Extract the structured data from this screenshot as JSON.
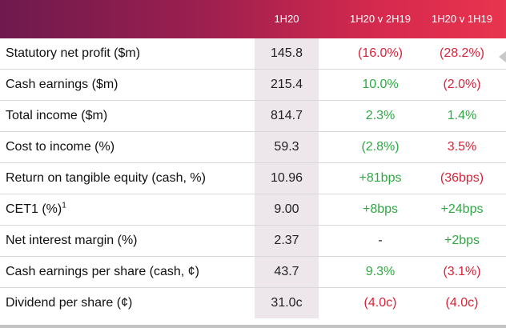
{
  "header": {
    "col1": "1H20",
    "col2": "1H20 v 2H19",
    "col3": "1H20 v 1H19"
  },
  "rows": [
    {
      "label": "Statutory net profit ($m)",
      "v1": "145.8",
      "v2": "(16.0%)",
      "v3": "(28.2%)",
      "s2": "neg",
      "s3": "neg"
    },
    {
      "label": "Cash earnings ($m)",
      "v1": "215.4",
      "v2": "10.0%",
      "v3": "(2.0%)",
      "s2": "pos",
      "s3": "neg"
    },
    {
      "label": "Total income ($m)",
      "v1": "814.7",
      "v2": "2.3%",
      "v3": "1.4%",
      "s2": "pos",
      "s3": "pos"
    },
    {
      "label": "Cost to income (%)",
      "v1": "59.3",
      "v2": "(2.8%)",
      "v3": "3.5%",
      "s2": "pos",
      "s3": "neg"
    },
    {
      "label": "Return on tangible equity (cash, %)",
      "v1": "10.96",
      "v2": "+81bps",
      "v3": "(36bps)",
      "s2": "pos",
      "s3": "neg"
    },
    {
      "label": "CET1 (%)",
      "label_sup": "1",
      "v1": "9.00",
      "v2": "+8bps",
      "v3": "+24bps",
      "s2": "pos",
      "s3": "pos"
    },
    {
      "label": "Net interest margin (%)",
      "v1": "2.37",
      "v2": "-",
      "v3": "+2bps",
      "s2": "neu",
      "s3": "pos"
    },
    {
      "label": "Cash earnings per share (cash, ¢)",
      "v1": "43.7",
      "v2": "9.3%",
      "v3": "(3.1%)",
      "s2": "pos",
      "s3": "neg"
    },
    {
      "label": "Dividend per share (¢)",
      "v1": "31.0c",
      "v2": "(4.0c)",
      "v3": "(4.0c)",
      "s2": "neg",
      "s3": "neg"
    }
  ],
  "colors": {
    "positive": "#2fa844",
    "negative": "#d4243a",
    "header_gradient_start": "#6e1a4e",
    "header_gradient_end": "#e8344e",
    "highlight_column": "#ede6ea"
  }
}
